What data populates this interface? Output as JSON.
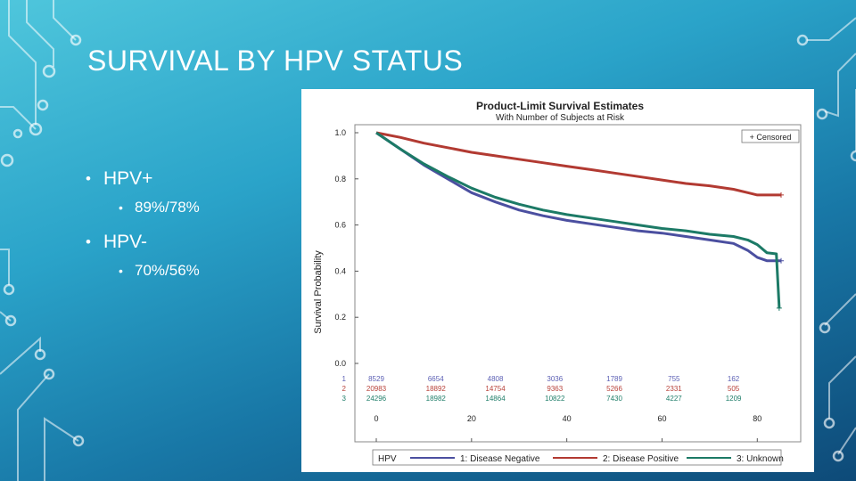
{
  "slide": {
    "title": "SURVIVAL BY HPV STATUS",
    "bullets": [
      {
        "label": "HPV+",
        "sub": "89%/78%"
      },
      {
        "label": "HPV-",
        "sub": "70%/56%"
      }
    ]
  },
  "colors": {
    "series1": "#4b4fa0",
    "series2": "#b23a32",
    "series3": "#1c7a66",
    "risk1": "#5b5fb4",
    "risk2": "#b8423a",
    "risk3": "#23806c"
  },
  "chart_data": {
    "type": "line",
    "title": "Product-Limit Survival Estimates",
    "subtitle": "With Number of Subjects at Risk",
    "xlabel": "",
    "ylabel": "Survival Probability",
    "xlim": [
      0,
      85
    ],
    "ylim": [
      0,
      1
    ],
    "xticks": [
      0,
      20,
      40,
      60,
      80
    ],
    "yticks": [
      0.0,
      0.2,
      0.4,
      0.6,
      0.8,
      1.0
    ],
    "xtick_labels": [
      "0",
      "20",
      "40",
      "60",
      "80"
    ],
    "ytick_labels": [
      "0.0",
      "0.2",
      "0.4",
      "0.6",
      "0.8",
      "1.0"
    ],
    "censored_label": "+ Censored",
    "legend_title": "HPV",
    "legend_position": "bottom",
    "grid": false,
    "series": [
      {
        "name": "1: Disease Negative",
        "x": [
          0,
          5,
          10,
          15,
          20,
          25,
          30,
          35,
          40,
          45,
          50,
          55,
          60,
          65,
          70,
          75,
          78,
          80,
          82,
          85
        ],
        "y": [
          1.0,
          0.93,
          0.86,
          0.8,
          0.74,
          0.7,
          0.665,
          0.64,
          0.62,
          0.605,
          0.59,
          0.575,
          0.565,
          0.55,
          0.535,
          0.52,
          0.49,
          0.46,
          0.445,
          0.445
        ]
      },
      {
        "name": "2: Disease Positive",
        "x": [
          0,
          5,
          10,
          15,
          20,
          25,
          30,
          35,
          40,
          45,
          50,
          55,
          60,
          65,
          70,
          75,
          78,
          80,
          85
        ],
        "y": [
          1.0,
          0.98,
          0.955,
          0.935,
          0.915,
          0.9,
          0.885,
          0.87,
          0.855,
          0.84,
          0.825,
          0.81,
          0.795,
          0.78,
          0.77,
          0.755,
          0.74,
          0.73,
          0.73
        ]
      },
      {
        "name": "3: Unknown",
        "x": [
          0,
          5,
          10,
          15,
          20,
          25,
          30,
          35,
          40,
          45,
          50,
          55,
          60,
          65,
          70,
          75,
          78,
          80,
          82,
          84,
          84.6
        ],
        "y": [
          1.0,
          0.93,
          0.865,
          0.81,
          0.76,
          0.72,
          0.69,
          0.665,
          0.645,
          0.63,
          0.615,
          0.6,
          0.585,
          0.575,
          0.56,
          0.55,
          0.535,
          0.515,
          0.48,
          0.475,
          0.24
        ]
      }
    ],
    "at_risk": {
      "times": [
        0,
        12.5,
        25,
        37.5,
        50,
        62.5,
        75
      ],
      "rows": [
        {
          "label": "1",
          "values": [
            "8529",
            "6654",
            "4808",
            "3036",
            "1789",
            "755",
            "162"
          ]
        },
        {
          "label": "2",
          "values": [
            "20983",
            "18892",
            "14754",
            "9363",
            "5266",
            "2331",
            "505"
          ]
        },
        {
          "label": "3",
          "values": [
            "24296",
            "18982",
            "14864",
            "10822",
            "7430",
            "4227",
            "1209"
          ]
        }
      ]
    }
  }
}
